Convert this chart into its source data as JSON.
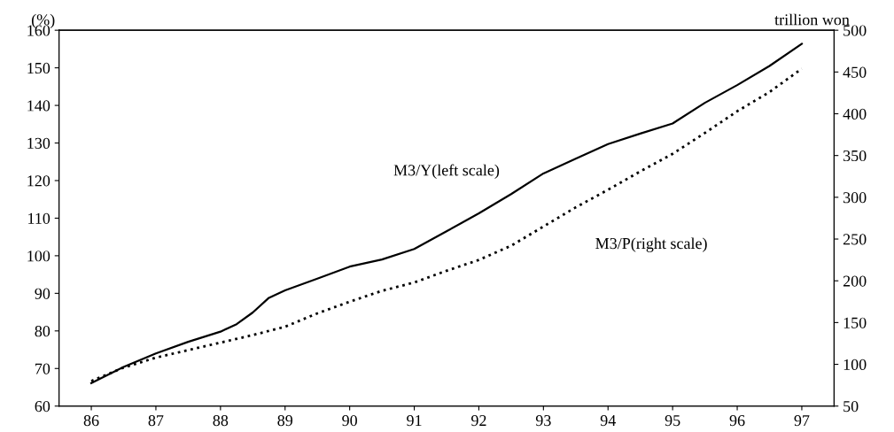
{
  "chart_data": {
    "type": "line",
    "ylabel": "(%)",
    "y2label": "trillion won",
    "xlim": [
      85.5,
      97.5
    ],
    "xticks": [
      86,
      87,
      88,
      89,
      90,
      91,
      92,
      93,
      94,
      95,
      96,
      97
    ],
    "ylim": [
      60,
      160
    ],
    "yticks": [
      60,
      70,
      80,
      90,
      100,
      110,
      120,
      130,
      140,
      150,
      160
    ],
    "y2lim": [
      50,
      500
    ],
    "y2ticks": [
      50,
      100,
      150,
      200,
      250,
      300,
      350,
      400,
      450,
      500
    ],
    "grid": false,
    "legend": false,
    "series": [
      {
        "name": "M3/Y(left scale)",
        "color": "#000000",
        "line_style": "solid",
        "x": [
          86,
          86.5,
          87,
          87.5,
          88,
          88.25,
          88.5,
          88.75,
          89,
          89.5,
          90,
          90.5,
          91,
          91.5,
          92,
          92.5,
          93,
          93.5,
          94,
          94.5,
          95,
          95.5,
          96,
          96.5,
          97
        ],
        "values": [
          66.1,
          70.4,
          74.0,
          77.1,
          79.8,
          81.8,
          84.9,
          88.8,
          90.8,
          93.9,
          97.1,
          99.0,
          101.8,
          106.5,
          111.3,
          116.4,
          121.9,
          125.8,
          129.7,
          132.5,
          135.2,
          140.7,
          145.4,
          150.5,
          156.4
        ]
      },
      {
        "name": "M3/P(right scale)",
        "color": "#000000",
        "line_style": "dotted",
        "axis": "y2",
        "x": [
          86,
          86.5,
          87,
          87.5,
          88,
          88.5,
          89,
          89.5,
          90,
          90.5,
          91,
          91.5,
          92,
          92.5,
          93,
          93.5,
          94,
          94.5,
          95,
          95.5,
          96,
          96.5,
          97
        ],
        "values": [
          80,
          96,
          108,
          117,
          126,
          135,
          145,
          161,
          175,
          188,
          198,
          212,
          225,
          242,
          265,
          288,
          309,
          331,
          352,
          377,
          403,
          426,
          454
        ]
      }
    ]
  }
}
